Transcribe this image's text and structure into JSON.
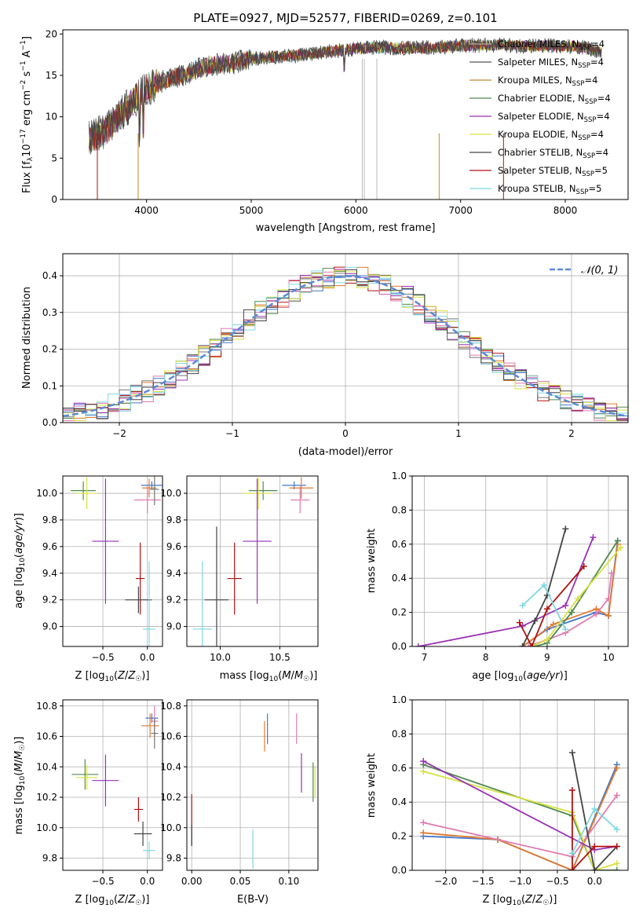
{
  "figure_title": "PLATE=0927, MJD=52577, FIBERID=0269, z=0.101",
  "chart_data": [
    {
      "id": "spectrum",
      "type": "line",
      "xlabel": "wavelength [Angstrom, rest frame]",
      "ylabel": "Flux [f_λ 10^-17 erg cm^-2 s^-1 A^-1]",
      "xlim": [
        3200,
        8600
      ],
      "ylim": [
        0,
        20.5
      ],
      "xticks": [
        4000,
        5000,
        6000,
        7000,
        8000
      ],
      "yticks": [
        0,
        5,
        10,
        15,
        20
      ],
      "grid": false,
      "legend": "top-right",
      "data_sample_x": [
        3450,
        3600,
        3800,
        4000,
        4200,
        4400,
        4600,
        4800,
        5000,
        5200,
        5400,
        5600,
        5800,
        6000,
        6200,
        6400,
        6600,
        6800,
        7000,
        7200,
        7400,
        7600,
        7800,
        8000,
        8200,
        8300
      ],
      "data_sample_y": [
        7.2,
        8.2,
        11.0,
        13.5,
        14.5,
        15.3,
        16.2,
        16.4,
        17.0,
        17.2,
        17.4,
        17.6,
        18.0,
        18.2,
        18.4,
        18.3,
        18.3,
        18.4,
        18.6,
        18.6,
        18.7,
        18.5,
        18.6,
        18.5,
        18.4,
        17.9
      ],
      "legend_entries": [
        {
          "label": "Chabrier MILES, N",
          "sub": "SSP",
          "eq": "=4",
          "color": "#aaaaaa"
        },
        {
          "label": "Salpeter MILES, N",
          "sub": "SSP",
          "eq": "=4",
          "color": "#555555"
        },
        {
          "label": "Kroupa MILES, N",
          "sub": "SSP",
          "eq": "=4",
          "color": "#bf8a2e"
        },
        {
          "label": "Chabrier ELODIE, N",
          "sub": "SSP",
          "eq": "=4",
          "color": "#4e8a4e"
        },
        {
          "label": "Salpeter ELODIE, N",
          "sub": "SSP",
          "eq": "=4",
          "color": "#9a32b5"
        },
        {
          "label": "Kroupa ELODIE, N",
          "sub": "SSP",
          "eq": "=4",
          "color": "#d8e040"
        },
        {
          "label": "Chabrier STELIB, N",
          "sub": "SSP",
          "eq": "=4",
          "color": "#444444"
        },
        {
          "label": "Salpeter STELIB, N",
          "sub": "SSP",
          "eq": "=5",
          "color": "#b01010"
        },
        {
          "label": "Kroupa STELIB, N",
          "sub": "SSP",
          "eq": "=5",
          "color": "#7fd8e0"
        }
      ]
    },
    {
      "id": "residuals",
      "type": "step-histogram",
      "xlabel": "(data-model)/error",
      "ylabel": "Normed distribution",
      "xlim": [
        -2.5,
        2.5
      ],
      "ylim": [
        0,
        0.46
      ],
      "xticks": [
        -2,
        -1,
        0,
        1,
        2
      ],
      "yticks": [
        0.0,
        0.1,
        0.2,
        0.3,
        0.4
      ],
      "grid": true,
      "legend": "top-right",
      "legend_label": "𝒩(0, 1)",
      "bin_width": 0.1,
      "bins_from": -2.5,
      "bins_to": 2.5
    },
    {
      "id": "age_vs_Z",
      "type": "errorbar",
      "xlabel": "Z [log10(Z/Z☉)]",
      "ylabel": "age  [log10(age/yr)]",
      "xlim": [
        -0.95,
        0.17
      ],
      "ylim": [
        8.85,
        10.13
      ],
      "xticks": [
        -0.5,
        0.0
      ],
      "yticks": [
        9.0,
        9.2,
        9.4,
        9.6,
        9.8,
        10.0
      ],
      "grid": true,
      "points": [
        {
          "x": 0.05,
          "y": 10.06,
          "xerr": 0.12,
          "yerr": 0.03,
          "c": "#4477cc"
        },
        {
          "x": 0.02,
          "y": 10.04,
          "xerr": 0.08,
          "yerr": 0.07,
          "c": "#e07a2e"
        },
        {
          "x": 0.0,
          "y": 9.95,
          "xerr": 0.15,
          "yerr": 0.1,
          "c": "#e07ab0"
        },
        {
          "x": 0.08,
          "y": 10.03,
          "xerr": 0.05,
          "yerr": 0.12,
          "c": "#777777"
        },
        {
          "x": -0.72,
          "y": 10.02,
          "xerr": 0.14,
          "yerr": 0.07,
          "c": "#4e8a4e"
        },
        {
          "x": -0.68,
          "y": 10.0,
          "xerr": 0.12,
          "yerr": 0.12,
          "c": "#d8e040"
        },
        {
          "x": -0.47,
          "y": 9.64,
          "xerr": 0.15,
          "yerr": 0.47,
          "c": "#9a32b5"
        },
        {
          "x": -0.08,
          "y": 9.36,
          "xerr": 0.05,
          "yerr": 0.27,
          "c": "#b01010"
        },
        {
          "x": -0.1,
          "y": 9.2,
          "xerr": 0.15,
          "yerr": 0.1,
          "c": "#444444"
        },
        {
          "x": 0.02,
          "y": 8.98,
          "xerr": 0.07,
          "yerr": 0.51,
          "c": "#7fd8e0"
        }
      ]
    },
    {
      "id": "age_vs_mass",
      "type": "errorbar",
      "xlabel": "mass [log10(M/M☉)]",
      "ylabel": "",
      "xlim": [
        9.72,
        10.82
      ],
      "ylim": [
        8.85,
        10.13
      ],
      "xticks": [
        10.0,
        10.5
      ],
      "yticks": [
        9.0,
        9.2,
        9.4,
        9.6,
        9.8,
        10.0
      ],
      "grid": true,
      "points": [
        {
          "x": 10.62,
          "y": 10.06,
          "xerr": 0.1,
          "yerr": 0.03,
          "c": "#4477cc"
        },
        {
          "x": 10.68,
          "y": 10.04,
          "xerr": 0.1,
          "yerr": 0.08,
          "c": "#e07a2e"
        },
        {
          "x": 10.67,
          "y": 9.95,
          "xerr": 0.08,
          "yerr": 0.1,
          "c": "#e07ab0"
        },
        {
          "x": 10.36,
          "y": 10.02,
          "xerr": 0.12,
          "yerr": 0.07,
          "c": "#4e8a4e"
        },
        {
          "x": 10.32,
          "y": 10.0,
          "xerr": 0.12,
          "yerr": 0.12,
          "c": "#d8e040"
        },
        {
          "x": 10.31,
          "y": 9.64,
          "xerr": 0.12,
          "yerr": 0.47,
          "c": "#9a32b5"
        },
        {
          "x": 10.12,
          "y": 9.36,
          "xerr": 0.06,
          "yerr": 0.27,
          "c": "#b01010"
        },
        {
          "x": 9.97,
          "y": 9.2,
          "xerr": 0.1,
          "yerr": 0.55,
          "c": "#444444"
        },
        {
          "x": 9.85,
          "y": 8.98,
          "xerr": 0.08,
          "yerr": 0.51,
          "c": "#7fd8e0"
        }
      ]
    },
    {
      "id": "massweight_vs_age",
      "type": "line",
      "xlabel": "age  [log10(age/yr)]",
      "ylabel": "mass weight",
      "xlim": [
        6.8,
        10.32
      ],
      "ylim": [
        0,
        1
      ],
      "xticks": [
        7,
        8,
        9,
        10
      ],
      "yticks": [
        0.0,
        0.2,
        0.4,
        0.6,
        0.8,
        1.0
      ],
      "grid": true,
      "series": [
        {
          "c": "#4477cc",
          "x": [
            8.6,
            9.0,
            9.8,
            10.0,
            10.15
          ],
          "y": [
            0.0,
            0.1,
            0.2,
            0.18,
            0.62
          ]
        },
        {
          "c": "#e07a2e",
          "x": [
            8.6,
            9.1,
            9.8,
            10.0,
            10.15
          ],
          "y": [
            0.0,
            0.13,
            0.22,
            0.18,
            0.6
          ]
        },
        {
          "c": "#e07ab0",
          "x": [
            8.7,
            9.3,
            9.8,
            10.0,
            10.05
          ],
          "y": [
            0.0,
            0.08,
            0.19,
            0.28,
            0.43
          ]
        },
        {
          "c": "#4e8a4e",
          "x": [
            8.8,
            9.0,
            9.4,
            10.15
          ],
          "y": [
            0.0,
            0.02,
            0.2,
            0.62
          ]
        },
        {
          "c": "#d8e040",
          "x": [
            8.75,
            9.0,
            9.5,
            10.2
          ],
          "y": [
            0.0,
            0.04,
            0.28,
            0.58
          ]
        },
        {
          "c": "#9a32b5",
          "x": [
            6.9,
            8.6,
            9.3,
            9.75
          ],
          "y": [
            0.0,
            0.12,
            0.24,
            0.64
          ]
        },
        {
          "c": "#444444",
          "x": [
            8.6,
            8.8,
            9.0,
            9.3
          ],
          "y": [
            0.0,
            0.15,
            0.3,
            0.69
          ]
        },
        {
          "c": "#b01010",
          "x": [
            8.55,
            8.75,
            9.0,
            9.6
          ],
          "y": [
            0.14,
            0.0,
            0.22,
            0.47
          ]
        },
        {
          "c": "#7fd8e0",
          "x": [
            8.6,
            8.95,
            9.3
          ],
          "y": [
            0.24,
            0.36,
            0.1
          ]
        }
      ]
    },
    {
      "id": "mass_vs_Z",
      "type": "errorbar",
      "xlabel": "Z [log10(Z/Z☉)]",
      "ylabel": "mass [log10(M/M☉)]",
      "xlim": [
        -0.95,
        0.17
      ],
      "ylim": [
        9.72,
        10.84
      ],
      "xticks": [
        -0.5,
        0.0
      ],
      "yticks": [
        9.8,
        10.0,
        10.2,
        10.4,
        10.6,
        10.8
      ],
      "grid": true,
      "points": [
        {
          "x": 0.05,
          "y": 10.72,
          "xerr": 0.07,
          "yerr": 0.03,
          "c": "#4477cc"
        },
        {
          "x": 0.03,
          "y": 10.67,
          "xerr": 0.1,
          "yerr": 0.08,
          "c": "#e07a2e"
        },
        {
          "x": 0.08,
          "y": 10.7,
          "xerr": 0.04,
          "yerr": 0.1,
          "c": "#e07ab0"
        },
        {
          "x": 0.08,
          "y": 10.62,
          "xerr": 0.04,
          "yerr": 0.1,
          "c": "#777777"
        },
        {
          "x": -0.7,
          "y": 10.35,
          "xerr": 0.15,
          "yerr": 0.1,
          "c": "#4e8a4e"
        },
        {
          "x": -0.68,
          "y": 10.33,
          "xerr": 0.12,
          "yerr": 0.08,
          "c": "#d8e040"
        },
        {
          "x": -0.47,
          "y": 10.31,
          "xerr": 0.15,
          "yerr": 0.17,
          "c": "#9a32b5"
        },
        {
          "x": -0.1,
          "y": 10.12,
          "xerr": 0.05,
          "yerr": 0.08,
          "c": "#b01010"
        },
        {
          "x": -0.05,
          "y": 9.96,
          "xerr": 0.1,
          "yerr": 0.08,
          "c": "#444444"
        },
        {
          "x": 0.02,
          "y": 9.85,
          "xerr": 0.07,
          "yerr": 0.06,
          "c": "#7fd8e0"
        }
      ]
    },
    {
      "id": "mass_vs_ebv",
      "type": "errorbar",
      "xlabel": "E(B-V)",
      "ylabel": "",
      "xlim": [
        -0.005,
        0.13
      ],
      "ylim": [
        9.72,
        10.84
      ],
      "xticks": [
        0.0,
        0.05,
        0.1
      ],
      "yticks": [
        9.8,
        10.0,
        10.2,
        10.4,
        10.6,
        10.8
      ],
      "grid": true,
      "points": [
        {
          "x": 0.0,
          "y": 10.05,
          "xerr": 0,
          "yerr": 0.17,
          "c": "#b01010"
        },
        {
          "x": 0.0,
          "y": 9.95,
          "xerr": 0,
          "yerr": 0.07,
          "c": "#444444"
        },
        {
          "x": 0.063,
          "y": 9.86,
          "xerr": 0,
          "yerr": 0.13,
          "c": "#7fd8e0"
        },
        {
          "x": 0.075,
          "y": 10.6,
          "xerr": 0,
          "yerr": 0.1,
          "c": "#e07a2e"
        },
        {
          "x": 0.078,
          "y": 10.65,
          "xerr": 0,
          "yerr": 0.1,
          "c": "#4477cc"
        },
        {
          "x": 0.108,
          "y": 10.65,
          "xerr": 0,
          "yerr": 0.1,
          "c": "#e07ab0"
        },
        {
          "x": 0.113,
          "y": 10.36,
          "xerr": 0,
          "yerr": 0.13,
          "c": "#9a32b5"
        },
        {
          "x": 0.125,
          "y": 10.3,
          "xerr": 0,
          "yerr": 0.13,
          "c": "#4e8a4e"
        },
        {
          "x": 0.127,
          "y": 10.3,
          "xerr": 0,
          "yerr": 0.1,
          "c": "#d8e040"
        }
      ]
    },
    {
      "id": "massweight_vs_Z",
      "type": "line",
      "xlabel": "Z [log10(Z/Z☉)]",
      "ylabel": "mass weight",
      "xlim": [
        -2.45,
        0.45
      ],
      "ylim": [
        0,
        1
      ],
      "xticks": [
        -2.0,
        -1.5,
        -1.0,
        -0.5,
        0.0
      ],
      "yticks": [
        0.0,
        0.2,
        0.4,
        0.6,
        0.8,
        1.0
      ],
      "grid": true,
      "series": [
        {
          "c": "#4477cc",
          "x": [
            -2.3,
            -1.3,
            -0.3,
            0.3
          ],
          "y": [
            0.2,
            0.18,
            0.0,
            0.62
          ]
        },
        {
          "c": "#e07a2e",
          "x": [
            -2.3,
            -1.3,
            -0.3,
            0.3
          ],
          "y": [
            0.22,
            0.18,
            0.0,
            0.6
          ]
        },
        {
          "c": "#e07ab0",
          "x": [
            -2.3,
            -0.3,
            0.3
          ],
          "y": [
            0.28,
            0.08,
            0.44
          ]
        },
        {
          "c": "#4e8a4e",
          "x": [
            -2.3,
            -0.3,
            0.0,
            0.3
          ],
          "y": [
            0.62,
            0.32,
            0.0,
            0.0
          ]
        },
        {
          "c": "#d8e040",
          "x": [
            -2.3,
            -0.3,
            0.0,
            0.3
          ],
          "y": [
            0.58,
            0.34,
            0.0,
            0.04
          ]
        },
        {
          "c": "#9a32b5",
          "x": [
            -2.3,
            0.0,
            0.3
          ],
          "y": [
            0.64,
            0.12,
            0.14
          ]
        },
        {
          "c": "#444444",
          "x": [
            -0.3,
            0.0,
            0.3
          ],
          "y": [
            0.69,
            0.0,
            0.14
          ]
        },
        {
          "c": "#b01010",
          "x": [
            -0.3,
            -0.3,
            0.0,
            0.3
          ],
          "y": [
            0.47,
            0.0,
            0.14,
            0.14
          ]
        },
        {
          "c": "#7fd8e0",
          "x": [
            -0.3,
            0.0,
            0.3
          ],
          "y": [
            0.1,
            0.36,
            0.24
          ]
        }
      ]
    }
  ]
}
